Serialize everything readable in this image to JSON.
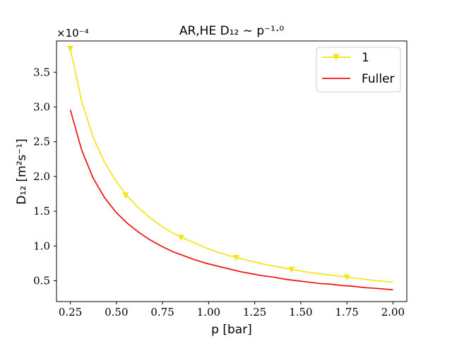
{
  "chart_data": {
    "type": "line",
    "title": "AR,HE D₁₂ ∼ p⁻¹·⁰",
    "xlabel": "p [bar]",
    "ylabel": "D₁₂ [m²s⁻¹]",
    "y_multiplier": "×10⁻⁴",
    "xlim": [
      0.175,
      2.075
    ],
    "ylim": [
      0.2,
      3.95
    ],
    "xticks": [
      0.25,
      0.5,
      0.75,
      1.0,
      1.25,
      1.5,
      1.75,
      2.0
    ],
    "xtick_labels": [
      "0.25",
      "0.50",
      "0.75",
      "1.00",
      "1.25",
      "1.50",
      "1.75",
      "2.00"
    ],
    "yticks": [
      0.5,
      1.0,
      1.5,
      2.0,
      2.5,
      3.0,
      3.5
    ],
    "ytick_labels": [
      "0.5",
      "1.0",
      "1.5",
      "2.0",
      "2.5",
      "3.0",
      "3.5"
    ],
    "grid": false,
    "legend_position": "top-right",
    "x": [
      0.25,
      0.3115,
      0.373,
      0.4345,
      0.496,
      0.5575,
      0.619,
      0.6805,
      0.742,
      0.8035,
      0.865,
      0.9265,
      0.988,
      1.0495,
      1.111,
      1.1725,
      1.234,
      1.2955,
      1.357,
      1.4185,
      1.48,
      1.5415,
      1.603,
      1.6645,
      1.726,
      1.7875,
      1.849,
      1.9105,
      2.0
    ],
    "series": [
      {
        "name": "1",
        "color": "#f2e51a",
        "marker": "triangle-down",
        "marker_x": [
          0.25,
          0.55,
          0.85,
          1.15,
          1.45,
          1.75
        ],
        "marker_y": [
          3.84,
          1.73,
          1.12,
          0.83,
          0.66,
          0.55
        ],
        "values": [
          3.84,
          3.08,
          2.57,
          2.21,
          1.94,
          1.72,
          1.55,
          1.41,
          1.29,
          1.19,
          1.11,
          1.04,
          0.97,
          0.91,
          0.86,
          0.82,
          0.78,
          0.74,
          0.71,
          0.68,
          0.65,
          0.62,
          0.6,
          0.58,
          0.56,
          0.54,
          0.52,
          0.5,
          0.48
        ]
      },
      {
        "name": "Fuller",
        "color": "#ee1111",
        "marker": "none",
        "values": [
          2.96,
          2.38,
          1.98,
          1.7,
          1.49,
          1.33,
          1.2,
          1.09,
          1.0,
          0.92,
          0.86,
          0.8,
          0.75,
          0.71,
          0.67,
          0.63,
          0.6,
          0.57,
          0.55,
          0.52,
          0.5,
          0.48,
          0.46,
          0.45,
          0.43,
          0.42,
          0.4,
          0.39,
          0.37
        ]
      }
    ]
  }
}
